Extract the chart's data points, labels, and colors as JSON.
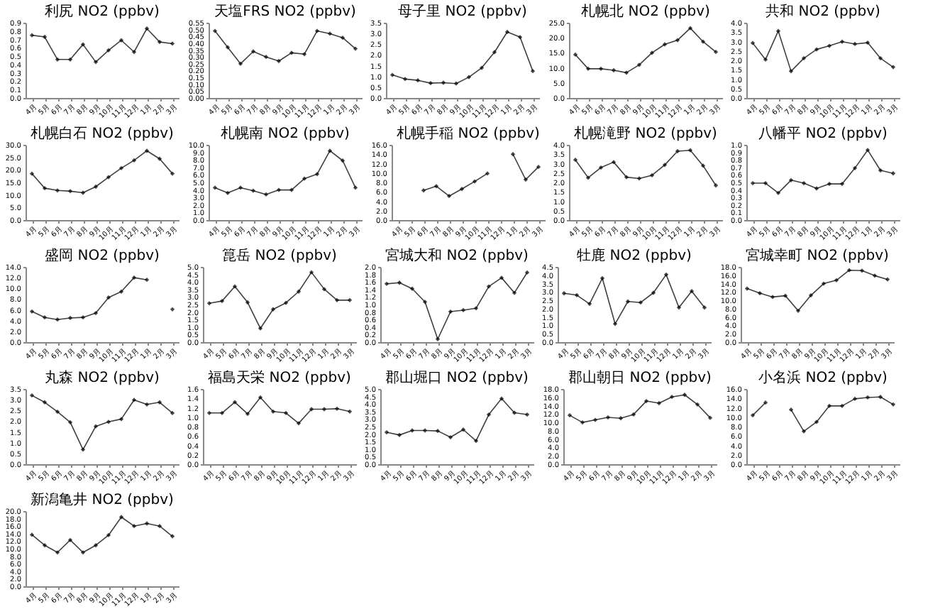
{
  "chart_data": [
    {
      "type": "line",
      "title": "利尻 NO2 (ppbv)",
      "categories": [
        "4月",
        "5月",
        "6月",
        "7月",
        "8月",
        "9月",
        "10月",
        "11月",
        "12月",
        "1月",
        "2月",
        "3月"
      ],
      "values": [
        0.75,
        0.73,
        0.46,
        0.46,
        0.64,
        0.43,
        0.57,
        0.69,
        0.55,
        0.83,
        0.67,
        0.65
      ],
      "color": "#404040",
      "marker": "diamond",
      "ylim": [
        0,
        0.9
      ],
      "yticks": [
        {
          "value": 0,
          "label": "0.0"
        },
        {
          "value": 0.1,
          "label": "0.1"
        },
        {
          "value": 0.2,
          "label": "0.2"
        },
        {
          "value": 0.3,
          "label": "0.3"
        },
        {
          "value": 0.4,
          "label": "0.4"
        },
        {
          "value": 0.5,
          "label": "0.5"
        },
        {
          "value": 0.6,
          "label": "0.6"
        },
        {
          "value": 0.7,
          "label": "0.7"
        },
        {
          "value": 0.8,
          "label": "0.8"
        },
        {
          "value": 0.9,
          "label": "0.9"
        }
      ]
    },
    {
      "type": "line",
      "title": "天塩FRS NO2 (ppbv)",
      "categories": [
        "4月",
        "5月",
        "6月",
        "7月",
        "8月",
        "9月",
        "10月",
        "11月",
        "12月",
        "1月",
        "2月",
        "3月"
      ],
      "values": [
        0.49,
        0.37,
        0.25,
        0.34,
        0.3,
        0.27,
        0.33,
        0.32,
        0.49,
        0.47,
        0.44,
        0.36
      ],
      "color": "#404040",
      "marker": "diamond",
      "ylim": [
        0,
        0.55
      ],
      "yticks": [
        {
          "value": 0,
          "label": "0.00"
        },
        {
          "value": 0.05,
          "label": "0.05"
        },
        {
          "value": 0.1,
          "label": "0.10"
        },
        {
          "value": 0.15,
          "label": "0.15"
        },
        {
          "value": 0.2,
          "label": "0.20"
        },
        {
          "value": 0.25,
          "label": "0.25"
        },
        {
          "value": 0.3,
          "label": "0.30"
        },
        {
          "value": 0.35,
          "label": "0.35"
        },
        {
          "value": 0.4,
          "label": "0.40"
        },
        {
          "value": 0.45,
          "label": "0.45"
        },
        {
          "value": 0.5,
          "label": "0.50"
        },
        {
          "value": 0.55,
          "label": "0.55"
        }
      ]
    },
    {
      "type": "line",
      "title": "母子里 NO2 (ppbv)",
      "categories": [
        "4月",
        "5月",
        "6月",
        "7月",
        "8月",
        "9月",
        "10月",
        "11月",
        "12月",
        "1月",
        "2月",
        "3月"
      ],
      "values": [
        1.07,
        0.88,
        0.82,
        0.69,
        0.71,
        0.67,
        0.97,
        1.4,
        2.13,
        3.07,
        2.83,
        1.25
      ],
      "color": "#404040",
      "marker": "diamond",
      "ylim": [
        0,
        3.5
      ],
      "yticks": [
        {
          "value": 0,
          "label": "0.0"
        },
        {
          "value": 0.5,
          "label": "0.5"
        },
        {
          "value": 1,
          "label": "1.0"
        },
        {
          "value": 1.5,
          "label": "1.5"
        },
        {
          "value": 2,
          "label": "2.0"
        },
        {
          "value": 2.5,
          "label": "2.5"
        },
        {
          "value": 3,
          "label": "3.0"
        },
        {
          "value": 3.5,
          "label": "3.5"
        }
      ]
    },
    {
      "type": "line",
      "title": "札幌北 NO2 (ppbv)",
      "categories": [
        "4月",
        "5月",
        "6月",
        "7月",
        "8月",
        "9月",
        "10月",
        "11月",
        "12月",
        "1月",
        "2月",
        "3月"
      ],
      "values": [
        14.4,
        9.7,
        9.7,
        9.2,
        8.4,
        11.0,
        15.0,
        17.8,
        19.2,
        23.2,
        18.7,
        15.3
      ],
      "color": "#404040",
      "marker": "diamond",
      "ylim": [
        0,
        25
      ],
      "yticks": [
        {
          "value": 0,
          "label": "0.0"
        },
        {
          "value": 5,
          "label": "5.0"
        },
        {
          "value": 10,
          "label": "10.0"
        },
        {
          "value": 15,
          "label": "15.0"
        },
        {
          "value": 20,
          "label": "20.0"
        },
        {
          "value": 25,
          "label": "25.0"
        }
      ]
    },
    {
      "type": "line",
      "title": "共和 NO2 (ppbv)",
      "categories": [
        "4月",
        "5月",
        "6月",
        "7月",
        "8月",
        "9月",
        "10月",
        "11月",
        "12月",
        "1月",
        "2月",
        "3月"
      ],
      "values": [
        2.92,
        2.04,
        3.56,
        1.42,
        2.11,
        2.58,
        2.77,
        2.99,
        2.87,
        2.94,
        2.11,
        1.64
      ],
      "color": "#404040",
      "marker": "diamond",
      "ylim": [
        0,
        4
      ],
      "yticks": [
        {
          "value": 0,
          "label": "0.0"
        },
        {
          "value": 0.5,
          "label": "0.5"
        },
        {
          "value": 1,
          "label": "1.0"
        },
        {
          "value": 1.5,
          "label": "1.5"
        },
        {
          "value": 2,
          "label": "2.0"
        },
        {
          "value": 2.5,
          "label": "2.5"
        },
        {
          "value": 3,
          "label": "3.0"
        },
        {
          "value": 3.5,
          "label": "3.5"
        },
        {
          "value": 4,
          "label": "4.0"
        }
      ]
    },
    {
      "type": "line",
      "title": "札幌白石 NO2 (ppbv)",
      "categories": [
        "4月",
        "5月",
        "6月",
        "7月",
        "8月",
        "9月",
        "10月",
        "11月",
        "12月",
        "1月",
        "2月",
        "3月"
      ],
      "values": [
        18.5,
        12.7,
        11.8,
        11.5,
        10.9,
        13.3,
        17.1,
        20.7,
        23.8,
        27.6,
        24.4,
        18.5
      ],
      "color": "#404040",
      "marker": "diamond",
      "ylim": [
        0,
        30
      ],
      "yticks": [
        {
          "value": 0,
          "label": "0.0"
        },
        {
          "value": 5,
          "label": "5.0"
        },
        {
          "value": 10,
          "label": "10.0"
        },
        {
          "value": 15,
          "label": "15.0"
        },
        {
          "value": 20,
          "label": "20.0"
        },
        {
          "value": 25,
          "label": "25.0"
        },
        {
          "value": 30,
          "label": "30.0"
        }
      ]
    },
    {
      "type": "line",
      "title": "札幌南 NO2 (ppbv)",
      "categories": [
        "4月",
        "5月",
        "6月",
        "7月",
        "8月",
        "9月",
        "10月",
        "11月",
        "12月",
        "1月",
        "2月",
        "3月"
      ],
      "values": [
        4.3,
        3.6,
        4.3,
        3.9,
        3.4,
        4.0,
        4.0,
        5.5,
        6.1,
        9.2,
        7.9,
        4.3
      ],
      "color": "#404040",
      "marker": "diamond",
      "ylim": [
        0,
        10
      ],
      "yticks": [
        {
          "value": 0,
          "label": "0.0"
        },
        {
          "value": 1,
          "label": "1.0"
        },
        {
          "value": 2,
          "label": "2.0"
        },
        {
          "value": 3,
          "label": "3.0"
        },
        {
          "value": 4,
          "label": "4.0"
        },
        {
          "value": 5,
          "label": "5.0"
        },
        {
          "value": 6,
          "label": "6.0"
        },
        {
          "value": 7,
          "label": "7.0"
        },
        {
          "value": 8,
          "label": "8.0"
        },
        {
          "value": 9,
          "label": "9.0"
        },
        {
          "value": 10,
          "label": "10.0"
        }
      ]
    },
    {
      "type": "line",
      "title": "札幌手稲 NO2 (ppbv)",
      "categories": [
        "4月",
        "5月",
        "6月",
        "7月",
        "8月",
        "9月",
        "10月",
        "11月",
        "12月",
        "1月",
        "2月",
        "3月"
      ],
      "values": [
        null,
        null,
        6.3,
        7.2,
        5.1,
        6.6,
        8.2,
        9.9,
        null,
        14.0,
        8.6,
        11.3
      ],
      "color": "#404040",
      "marker": "diamond",
      "ylim": [
        0,
        16
      ],
      "yticks": [
        {
          "value": 0,
          "label": "0.0"
        },
        {
          "value": 2,
          "label": "2.0"
        },
        {
          "value": 4,
          "label": "4.0"
        },
        {
          "value": 6,
          "label": "6.0"
        },
        {
          "value": 8,
          "label": "8.0"
        },
        {
          "value": 10,
          "label": "10.0"
        },
        {
          "value": 12,
          "label": "12.0"
        },
        {
          "value": 14,
          "label": "14.0"
        },
        {
          "value": 16,
          "label": "16.0"
        }
      ]
    },
    {
      "type": "line",
      "title": "札幌滝野 NO2 (ppbv)",
      "categories": [
        "4月",
        "5月",
        "6月",
        "7月",
        "8月",
        "9月",
        "10月",
        "11月",
        "12月",
        "1月",
        "2月",
        "3月"
      ],
      "values": [
        3.2,
        2.25,
        2.79,
        3.08,
        2.28,
        2.21,
        2.38,
        2.93,
        3.66,
        3.71,
        2.89,
        1.84
      ],
      "color": "#404040",
      "marker": "diamond",
      "ylim": [
        0,
        4
      ],
      "yticks": [
        {
          "value": 0,
          "label": "0.0"
        },
        {
          "value": 0.5,
          "label": "0.5"
        },
        {
          "value": 1,
          "label": "1.0"
        },
        {
          "value": 1.5,
          "label": "1.5"
        },
        {
          "value": 2,
          "label": "2.0"
        },
        {
          "value": 2.5,
          "label": "2.5"
        },
        {
          "value": 3,
          "label": "3.0"
        },
        {
          "value": 3.5,
          "label": "3.5"
        },
        {
          "value": 4,
          "label": "4.0"
        }
      ]
    },
    {
      "type": "line",
      "title": "八幡平 NO2 (ppbv)",
      "categories": [
        "4月",
        "5月",
        "6月",
        "7月",
        "8月",
        "9月",
        "10月",
        "11月",
        "12月",
        "1月",
        "2月",
        "3月"
      ],
      "values": [
        0.49,
        0.49,
        0.36,
        0.53,
        0.49,
        0.42,
        0.48,
        0.48,
        0.69,
        0.93,
        0.66,
        0.62
      ],
      "color": "#404040",
      "marker": "diamond",
      "ylim": [
        0,
        1
      ],
      "yticks": [
        {
          "value": 0,
          "label": "0.0"
        },
        {
          "value": 0.1,
          "label": "0.1"
        },
        {
          "value": 0.2,
          "label": "0.2"
        },
        {
          "value": 0.3,
          "label": "0.3"
        },
        {
          "value": 0.4,
          "label": "0.4"
        },
        {
          "value": 0.5,
          "label": "0.5"
        },
        {
          "value": 0.6,
          "label": "0.6"
        },
        {
          "value": 0.7,
          "label": "0.7"
        },
        {
          "value": 0.8,
          "label": "0.8"
        },
        {
          "value": 0.9,
          "label": "0.9"
        },
        {
          "value": 1,
          "label": "1.0"
        }
      ]
    },
    {
      "type": "line",
      "title": "盛岡 NO2 (ppbv)",
      "categories": [
        "4月",
        "5月",
        "6月",
        "7月",
        "8月",
        "9月",
        "10月",
        "11月",
        "12月",
        "1月",
        "2月",
        "3月"
      ],
      "values": [
        5.7,
        4.6,
        4.2,
        4.5,
        4.6,
        5.4,
        8.3,
        9.4,
        12.0,
        11.6,
        null,
        6.1
      ],
      "color": "#404040",
      "marker": "diamond",
      "ylim": [
        0,
        14
      ],
      "yticks": [
        {
          "value": 0,
          "label": "0.0"
        },
        {
          "value": 2,
          "label": "2.0"
        },
        {
          "value": 4,
          "label": "4.0"
        },
        {
          "value": 6,
          "label": "6.0"
        },
        {
          "value": 8,
          "label": "8.0"
        },
        {
          "value": 10,
          "label": "10.0"
        },
        {
          "value": 12,
          "label": "12.0"
        },
        {
          "value": 14,
          "label": "14.0"
        }
      ]
    },
    {
      "type": "line",
      "title": "箟岳 NO2 (ppbv)",
      "categories": [
        "4月",
        "5月",
        "6月",
        "7月",
        "8月",
        "9月",
        "10月",
        "11月",
        "12月",
        "1月",
        "2月",
        "3月"
      ],
      "values": [
        2.58,
        2.73,
        3.7,
        2.64,
        0.91,
        2.18,
        2.61,
        3.36,
        4.64,
        3.52,
        2.79,
        2.79
      ],
      "color": "#404040",
      "marker": "diamond",
      "ylim": [
        0,
        5
      ],
      "yticks": [
        {
          "value": 0,
          "label": "0.0"
        },
        {
          "value": 0.5,
          "label": "0.5"
        },
        {
          "value": 1,
          "label": "1.0"
        },
        {
          "value": 1.5,
          "label": "1.5"
        },
        {
          "value": 2,
          "label": "2.0"
        },
        {
          "value": 2.5,
          "label": "2.5"
        },
        {
          "value": 3,
          "label": "3.0"
        },
        {
          "value": 3.5,
          "label": "3.5"
        },
        {
          "value": 4,
          "label": "4.0"
        },
        {
          "value": 4.5,
          "label": "4.5"
        },
        {
          "value": 5,
          "label": "5.0"
        }
      ]
    },
    {
      "type": "line",
      "title": "宮城大和 NO2 (ppbv)",
      "categories": [
        "4月",
        "5月",
        "6月",
        "7月",
        "8月",
        "9月",
        "10月",
        "11月",
        "12月",
        "1月",
        "2月",
        "3月"
      ],
      "values": [
        1.55,
        1.58,
        1.42,
        1.07,
        0.08,
        0.81,
        0.85,
        0.9,
        1.48,
        1.71,
        1.31,
        1.85
      ],
      "color": "#404040",
      "marker": "diamond",
      "ylim": [
        0,
        2
      ],
      "yticks": [
        {
          "value": 0,
          "label": "0.0"
        },
        {
          "value": 0.2,
          "label": "0.2"
        },
        {
          "value": 0.4,
          "label": "0.4"
        },
        {
          "value": 0.6,
          "label": "0.6"
        },
        {
          "value": 0.8,
          "label": "0.8"
        },
        {
          "value": 1,
          "label": "1.0"
        },
        {
          "value": 1.2,
          "label": "1.2"
        },
        {
          "value": 1.4,
          "label": "1.4"
        },
        {
          "value": 1.6,
          "label": "1.6"
        },
        {
          "value": 1.8,
          "label": "1.8"
        },
        {
          "value": 2,
          "label": "2.0"
        }
      ]
    },
    {
      "type": "line",
      "title": "牡鹿 NO2 (ppbv)",
      "categories": [
        "4月",
        "5月",
        "6月",
        "7月",
        "8月",
        "9月",
        "10月",
        "11月",
        "12月",
        "1月",
        "2月",
        "3月"
      ],
      "values": [
        2.92,
        2.81,
        2.29,
        3.82,
        1.09,
        2.43,
        2.37,
        2.95,
        4.04,
        2.07,
        3.05,
        2.07
      ],
      "color": "#404040",
      "marker": "diamond",
      "ylim": [
        0,
        4.5
      ],
      "yticks": [
        {
          "value": 0,
          "label": "0.0"
        },
        {
          "value": 0.5,
          "label": "0.5"
        },
        {
          "value": 1,
          "label": "1.0"
        },
        {
          "value": 1.5,
          "label": "1.5"
        },
        {
          "value": 2,
          "label": "2.0"
        },
        {
          "value": 2.5,
          "label": "2.5"
        },
        {
          "value": 3,
          "label": "3.0"
        },
        {
          "value": 3.5,
          "label": "3.5"
        },
        {
          "value": 4,
          "label": "4.0"
        },
        {
          "value": 4.5,
          "label": "4.5"
        }
      ]
    },
    {
      "type": "line",
      "title": "宮城幸町 NO2 (ppbv)",
      "categories": [
        "4月",
        "5月",
        "6月",
        "7月",
        "8月",
        "9月",
        "10月",
        "11月",
        "12月",
        "1月",
        "2月",
        "3月"
      ],
      "values": [
        12.8,
        11.7,
        10.8,
        11.1,
        7.5,
        11.2,
        14.0,
        14.8,
        17.2,
        17.1,
        15.9,
        15.0
      ],
      "color": "#404040",
      "marker": "diamond",
      "ylim": [
        0,
        18
      ],
      "yticks": [
        {
          "value": 0,
          "label": "0.0"
        },
        {
          "value": 2,
          "label": "2.0"
        },
        {
          "value": 4,
          "label": "4.0"
        },
        {
          "value": 6,
          "label": "6.0"
        },
        {
          "value": 8,
          "label": "8.0"
        },
        {
          "value": 10,
          "label": "10.0"
        },
        {
          "value": 12,
          "label": "12.0"
        },
        {
          "value": 14,
          "label": "14.0"
        },
        {
          "value": 16,
          "label": "16.0"
        },
        {
          "value": 18,
          "label": "18.0"
        }
      ]
    },
    {
      "type": "line",
      "title": "丸森 NO2 (ppbv)",
      "categories": [
        "4月",
        "5月",
        "6月",
        "7月",
        "8月",
        "9月",
        "10月",
        "11月",
        "12月",
        "1月",
        "2月",
        "3月"
      ],
      "values": [
        3.2,
        2.88,
        2.44,
        1.95,
        0.68,
        1.76,
        1.97,
        2.1,
        2.99,
        2.78,
        2.88,
        2.38
      ],
      "color": "#404040",
      "marker": "diamond",
      "ylim": [
        0,
        3.5
      ],
      "yticks": [
        {
          "value": 0,
          "label": "0.0"
        },
        {
          "value": 0.5,
          "label": "0.5"
        },
        {
          "value": 1,
          "label": "1.0"
        },
        {
          "value": 1.5,
          "label": "1.5"
        },
        {
          "value": 2,
          "label": "2.0"
        },
        {
          "value": 2.5,
          "label": "2.5"
        },
        {
          "value": 3,
          "label": "3.0"
        },
        {
          "value": 3.5,
          "label": "3.5"
        }
      ]
    },
    {
      "type": "line",
      "title": "福島天栄 NO2 (ppbv)",
      "categories": [
        "4月",
        "5月",
        "6月",
        "7月",
        "8月",
        "9月",
        "10月",
        "11月",
        "12月",
        "1月",
        "2月",
        "3月"
      ],
      "values": [
        1.09,
        1.09,
        1.32,
        1.07,
        1.42,
        1.12,
        1.09,
        0.87,
        1.17,
        1.17,
        1.18,
        1.12
      ],
      "color": "#404040",
      "marker": "diamond",
      "ylim": [
        0,
        1.6
      ],
      "yticks": [
        {
          "value": 0,
          "label": "0.0"
        },
        {
          "value": 0.2,
          "label": "0.2"
        },
        {
          "value": 0.4,
          "label": "0.4"
        },
        {
          "value": 0.6,
          "label": "0.6"
        },
        {
          "value": 0.8,
          "label": "0.8"
        },
        {
          "value": 1,
          "label": "1.0"
        },
        {
          "value": 1.2,
          "label": "1.2"
        },
        {
          "value": 1.4,
          "label": "1.4"
        },
        {
          "value": 1.6,
          "label": "1.6"
        }
      ]
    },
    {
      "type": "line",
      "title": "郡山堀口 NO2 (ppbv)",
      "categories": [
        "4月",
        "5月",
        "6月",
        "7月",
        "8月",
        "9月",
        "10月",
        "11月",
        "12月",
        "1月",
        "2月",
        "3月"
      ],
      "values": [
        2.12,
        1.94,
        2.24,
        2.24,
        2.21,
        1.79,
        2.3,
        1.55,
        3.3,
        4.36,
        3.42,
        3.3
      ],
      "color": "#404040",
      "marker": "diamond",
      "ylim": [
        0,
        5
      ],
      "yticks": [
        {
          "value": 0,
          "label": "0.0"
        },
        {
          "value": 0.5,
          "label": "0.5"
        },
        {
          "value": 1,
          "label": "1.0"
        },
        {
          "value": 1.5,
          "label": "1.5"
        },
        {
          "value": 2,
          "label": "2.0"
        },
        {
          "value": 2.5,
          "label": "2.5"
        },
        {
          "value": 3,
          "label": "3.0"
        },
        {
          "value": 3.5,
          "label": "3.5"
        },
        {
          "value": 4,
          "label": "4.0"
        },
        {
          "value": 4.5,
          "label": "4.5"
        },
        {
          "value": 5,
          "label": "5.0"
        }
      ]
    },
    {
      "type": "line",
      "title": "郡山朝日 NO2 (ppbv)",
      "categories": [
        "4月",
        "5月",
        "6月",
        "7月",
        "8月",
        "9月",
        "10月",
        "11月",
        "12月",
        "1月",
        "2月",
        "3月"
      ],
      "values": [
        11.7,
        10.0,
        10.6,
        11.2,
        11.0,
        11.9,
        15.1,
        14.6,
        16.1,
        16.6,
        14.3,
        11.1
      ],
      "color": "#404040",
      "marker": "diamond",
      "ylim": [
        0,
        18
      ],
      "yticks": [
        {
          "value": 0,
          "label": "0.0"
        },
        {
          "value": 2,
          "label": "2.0"
        },
        {
          "value": 4,
          "label": "4.0"
        },
        {
          "value": 6,
          "label": "6.0"
        },
        {
          "value": 8,
          "label": "8.0"
        },
        {
          "value": 10,
          "label": "10.0"
        },
        {
          "value": 12,
          "label": "12.0"
        },
        {
          "value": 14,
          "label": "14.0"
        },
        {
          "value": 16,
          "label": "16.0"
        },
        {
          "value": 18,
          "label": "18.0"
        }
      ]
    },
    {
      "type": "line",
      "title": "小名浜 NO2 (ppbv)",
      "categories": [
        "4月",
        "5月",
        "6月",
        "7月",
        "8月",
        "9月",
        "10月",
        "11月",
        "12月",
        "1月",
        "2月",
        "3月"
      ],
      "values": [
        10.4,
        13.1,
        null,
        11.6,
        7.0,
        9.0,
        12.4,
        12.4,
        13.9,
        14.2,
        14.3,
        12.7
      ],
      "color": "#404040",
      "marker": "diamond",
      "ylim": [
        0,
        16
      ],
      "yticks": [
        {
          "value": 0,
          "label": "0.0"
        },
        {
          "value": 2,
          "label": "2.0"
        },
        {
          "value": 4,
          "label": "4.0"
        },
        {
          "value": 6,
          "label": "6.0"
        },
        {
          "value": 8,
          "label": "8.0"
        },
        {
          "value": 10,
          "label": "10.0"
        },
        {
          "value": 12,
          "label": "12.0"
        },
        {
          "value": 14,
          "label": "14.0"
        },
        {
          "value": 16,
          "label": "16.0"
        }
      ]
    },
    {
      "type": "line",
      "title": "新潟亀井 NO2 (ppbv)",
      "categories": [
        "4月",
        "5月",
        "6月",
        "7月",
        "8月",
        "9月",
        "10月",
        "11月",
        "12月",
        "1月",
        "2月",
        "3月"
      ],
      "values": [
        13.7,
        10.9,
        9.0,
        12.3,
        9.0,
        10.9,
        13.6,
        18.4,
        16.0,
        16.7,
        16.0,
        13.3
      ],
      "color": "#404040",
      "marker": "diamond",
      "ylim": [
        0,
        20
      ],
      "yticks": [
        {
          "value": 0,
          "label": "0.0"
        },
        {
          "value": 2,
          "label": "2.0"
        },
        {
          "value": 4,
          "label": "4.0"
        },
        {
          "value": 6,
          "label": "6.0"
        },
        {
          "value": 8,
          "label": "8.0"
        },
        {
          "value": 10,
          "label": "10.0"
        },
        {
          "value": 12,
          "label": "12.0"
        },
        {
          "value": 14,
          "label": "14.0"
        },
        {
          "value": 16,
          "label": "16.0"
        },
        {
          "value": 18,
          "label": "18.0"
        },
        {
          "value": 20,
          "label": "20.0"
        }
      ]
    }
  ]
}
